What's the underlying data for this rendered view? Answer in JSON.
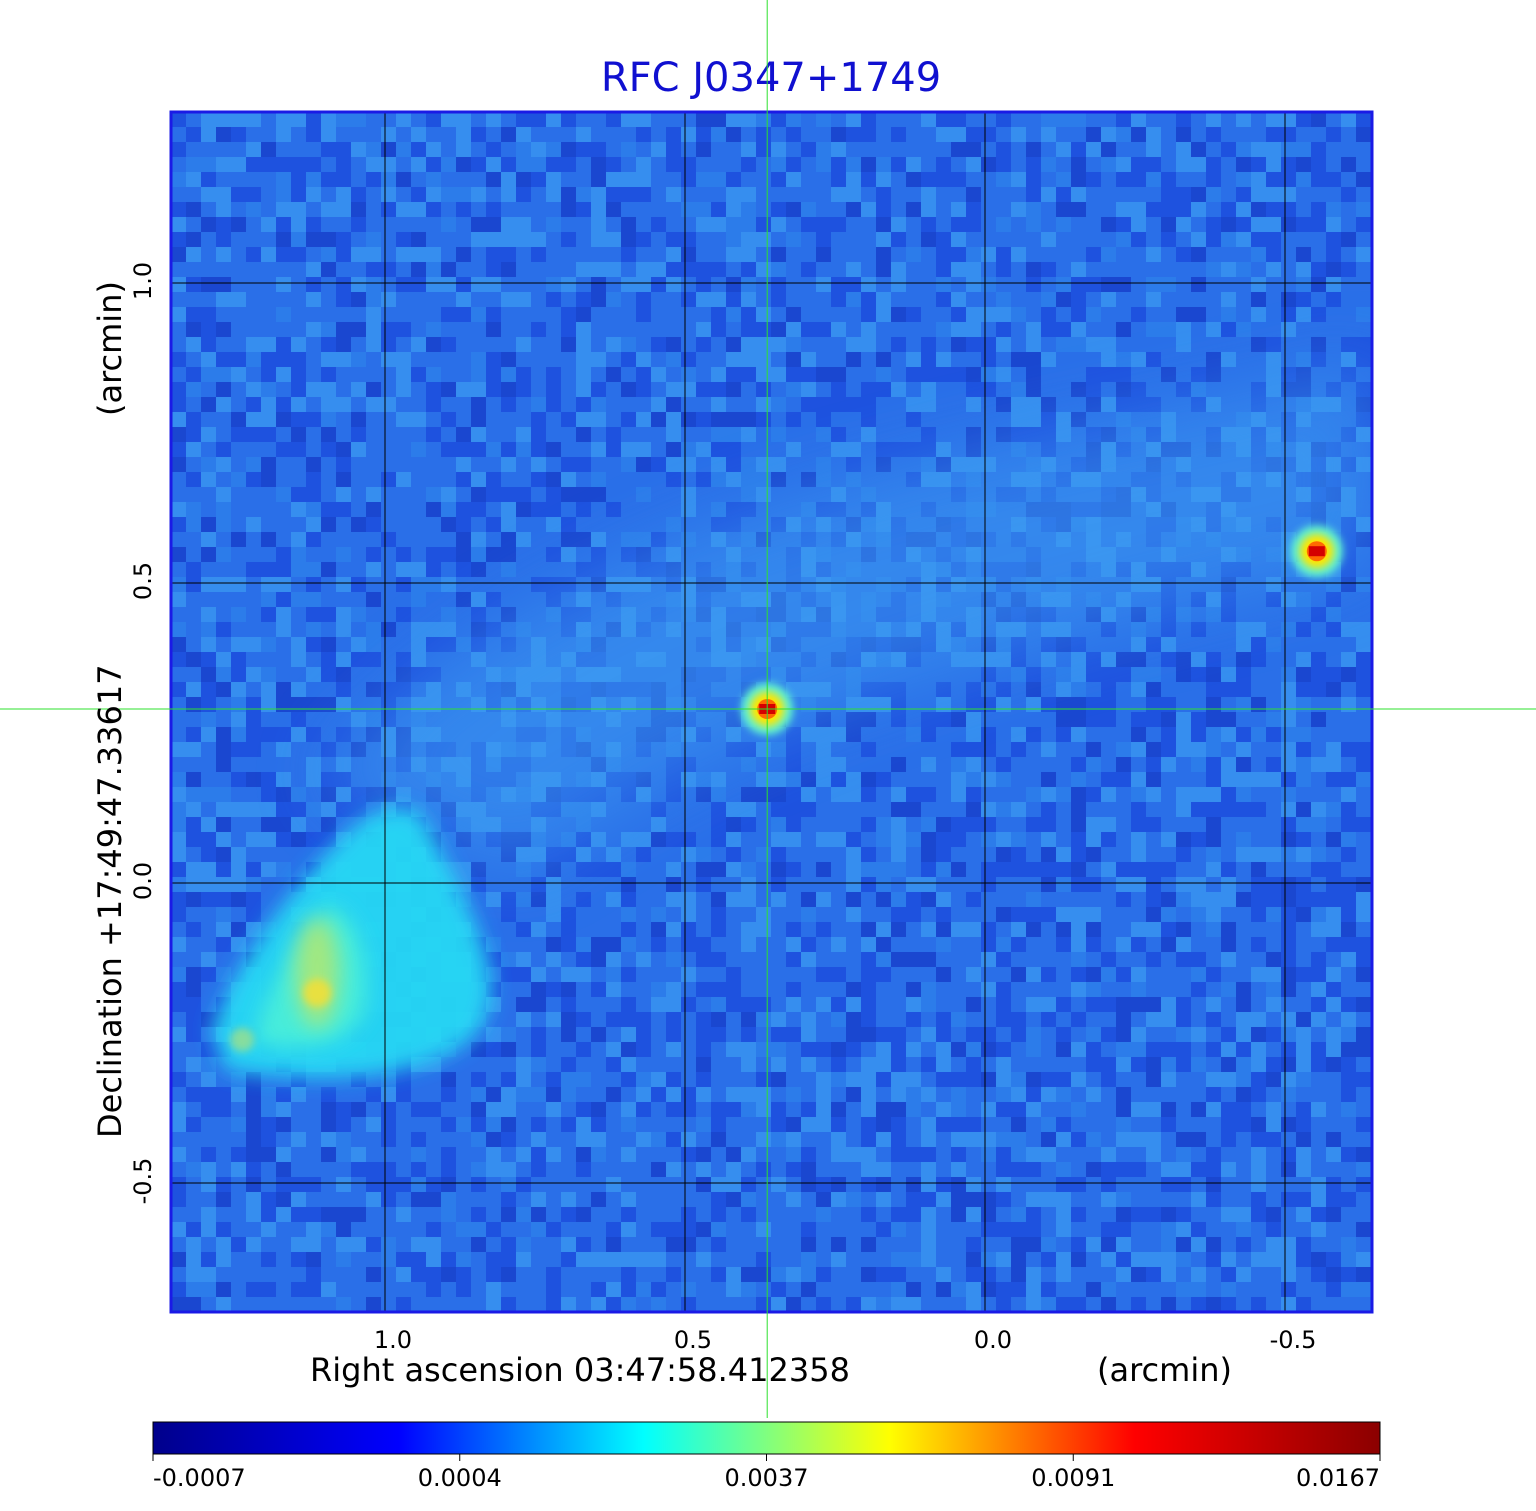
{
  "chart_data": {
    "type": "heatmap",
    "title": "RFC J0347+1749",
    "xlabel": "Right ascension  03:47:58.412358",
    "xunit": "(arcmin)",
    "ylabel": "Declination  +17:49:47.33617",
    "yunit": "(arcmin)",
    "x_ticks": [
      1.0,
      0.5,
      0.0,
      -0.5
    ],
    "x_tick_labels": [
      "1.0",
      "0.5",
      "0.0",
      "-0.5"
    ],
    "y_ticks": [
      1.0,
      0.5,
      0.0,
      -0.5
    ],
    "y_tick_labels": [
      "1.0",
      "0.5",
      "0.0",
      "-0.5"
    ],
    "xlim": [
      1.36,
      -0.64
    ],
    "ylim": [
      -0.71,
      1.29
    ],
    "x_direction": "decreasing",
    "grid": true,
    "crosshair": {
      "x": 0.363,
      "y": 0.29
    },
    "colorbar": {
      "position": "bottom",
      "tick_labels": [
        "-0.0007",
        "0.0004",
        "0.0037",
        "0.0091",
        "0.0167"
      ],
      "colors": [
        "#00008b",
        "#0000ff",
        "#00ffff",
        "#ffff00",
        "#ff0000",
        "#8b0000"
      ]
    },
    "sources": [
      {
        "x": 0.363,
        "y": 0.29,
        "peak": 0.0167
      },
      {
        "x": -0.553,
        "y": 0.553,
        "peak": 0.0167
      },
      {
        "x": 1.113,
        "y": -0.183,
        "peak": 0.0091
      }
    ],
    "extended_emission": {
      "region": "lower-left",
      "level": 0.0037
    }
  }
}
